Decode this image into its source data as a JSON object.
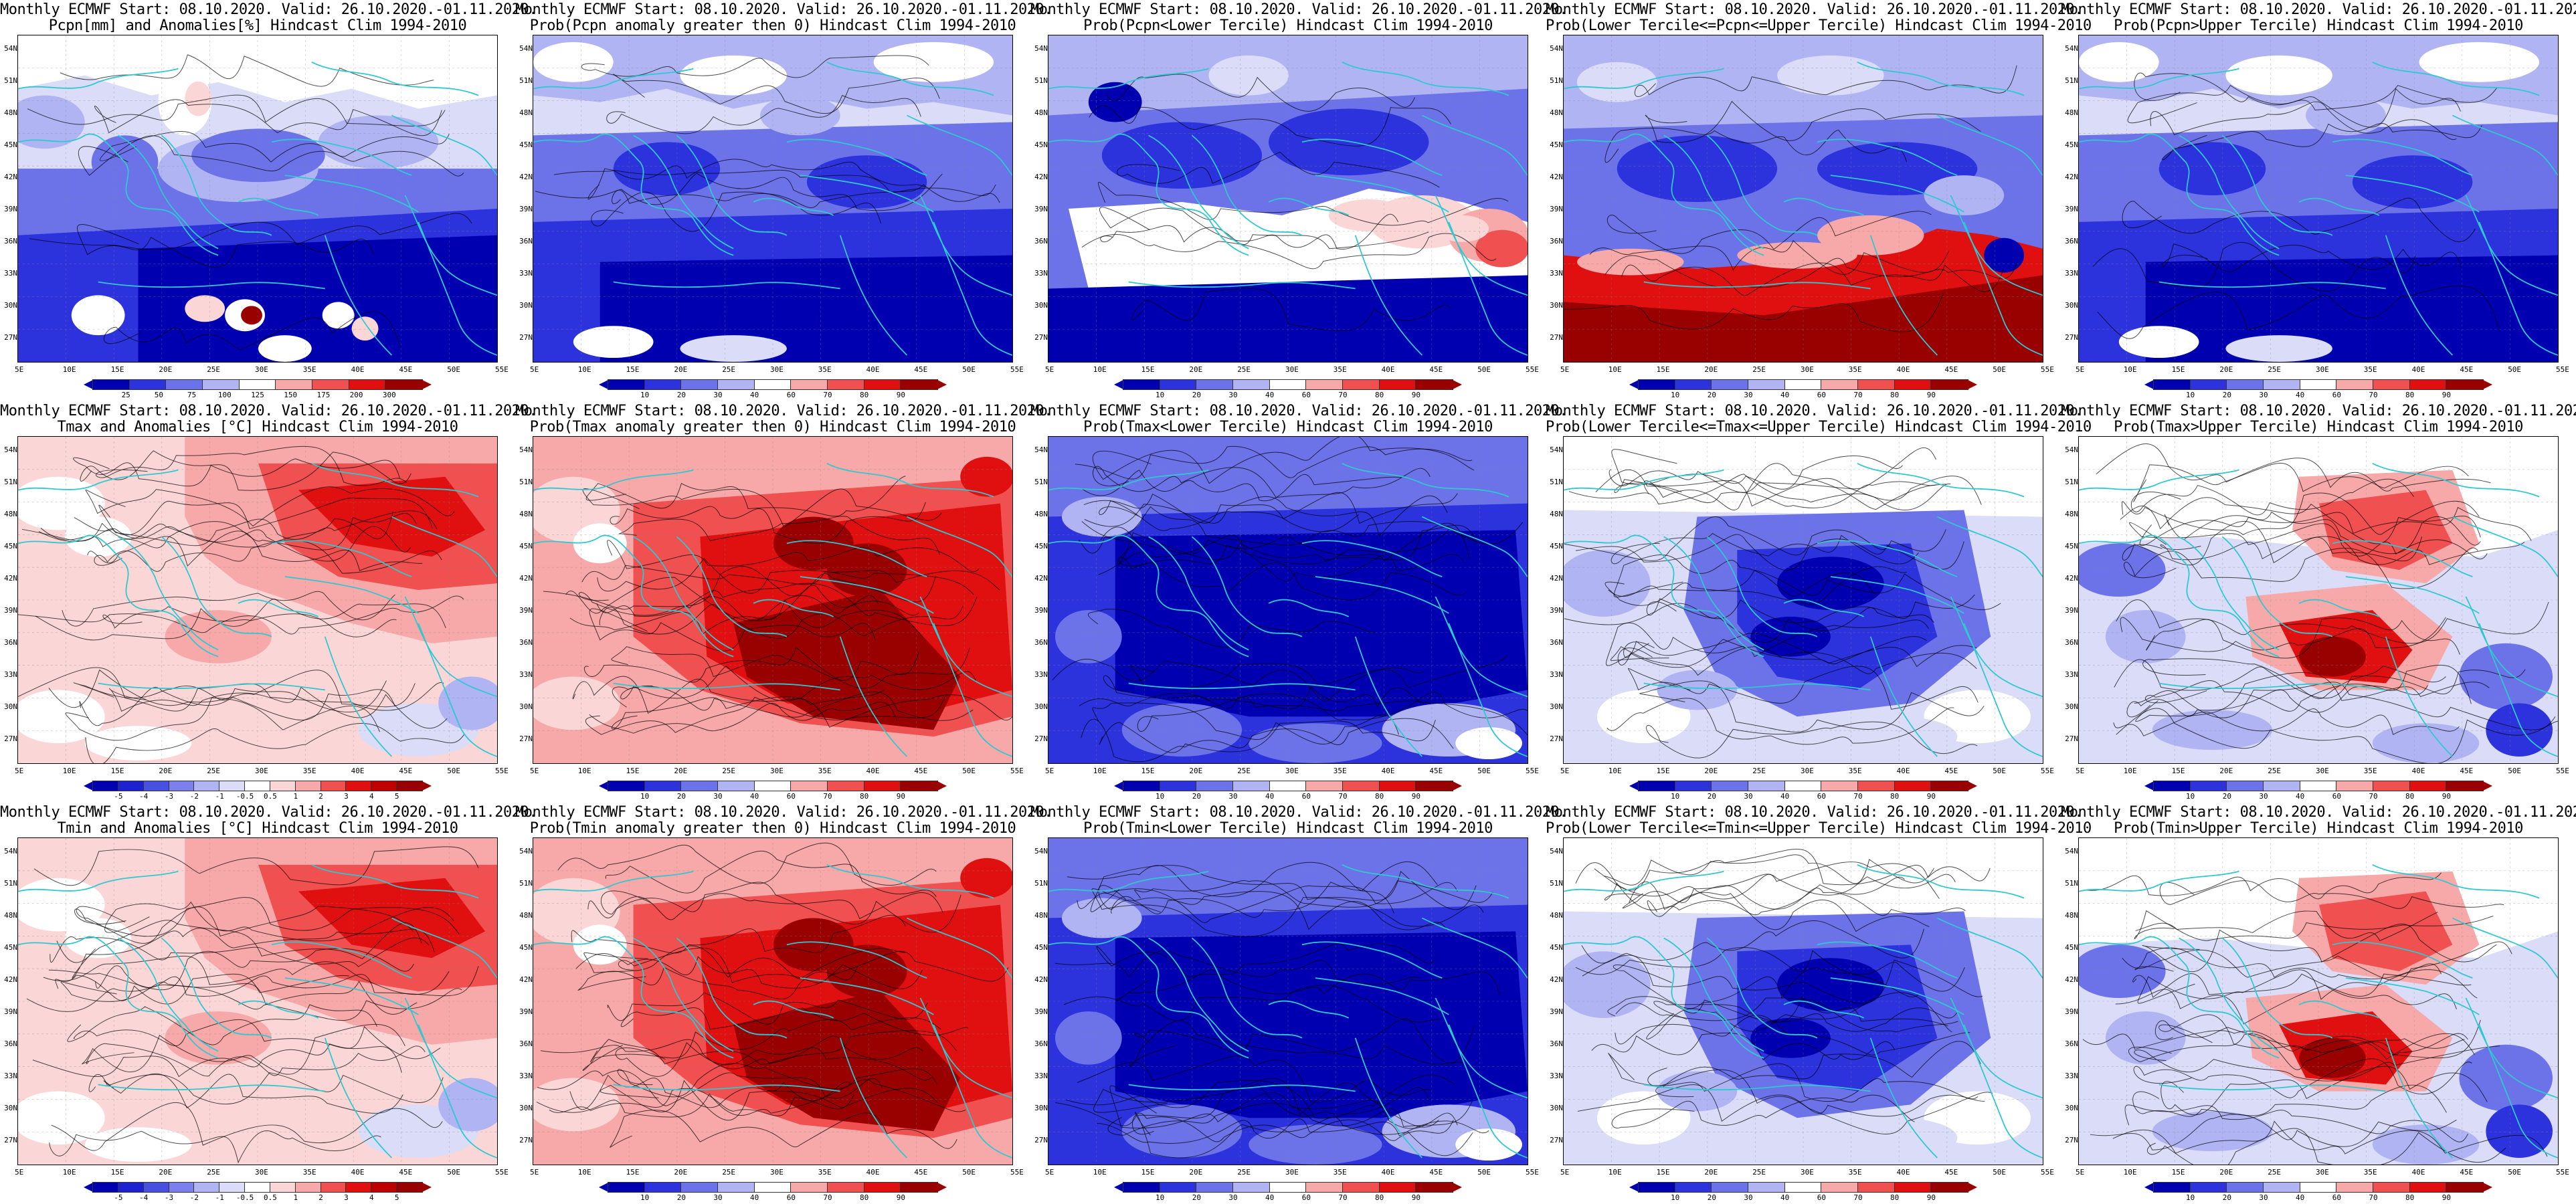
{
  "common_title": "Monthly ECMWF Start: 08.10.2020. Valid: 26.10.2020.-01.11.2020.",
  "lat_labels": [
    "54N",
    "51N",
    "48N",
    "45N",
    "42N",
    "39N",
    "36N",
    "33N",
    "30N",
    "27N"
  ],
  "lon_labels": [
    "5E",
    "10E",
    "15E",
    "20E",
    "25E",
    "30E",
    "35E",
    "40E",
    "45E",
    "50E",
    "55E"
  ],
  "colors": {
    "dark_red": "#990000",
    "red": "#e01010",
    "mid_red": "#f05050",
    "light_red": "#f7a8a8",
    "pale_red": "#fbd6d6",
    "white": "#ffffff",
    "pale_blue": "#dadcf8",
    "light_blue": "#b0b4f2",
    "mid_blue": "#6c72e8",
    "blue": "#2c32dc",
    "dark_blue": "#0000b0",
    "coast": "#30c8d0",
    "contour": "#000000"
  },
  "panels": [
    {
      "subtitle": "Pcpn[mm] and Anomalies[%] Hindcast Clim 1994-2010",
      "scheme": "precip",
      "ticks": [
        "25",
        "50",
        "75",
        "100",
        "125",
        "150",
        "175",
        "200",
        "300"
      ]
    },
    {
      "subtitle": "Prob(Pcpn anomaly greater then 0) Hindcast Clim 1994-2010",
      "scheme": "wet_blue",
      "ticks": [
        "10",
        "20",
        "30",
        "40",
        "60",
        "70",
        "80",
        "90"
      ]
    },
    {
      "subtitle": "Prob(Pcpn<Lower Tercile) Hindcast Clim 1994-2010",
      "scheme": "lower_precip",
      "ticks": [
        "10",
        "20",
        "30",
        "40",
        "60",
        "70",
        "80",
        "90"
      ]
    },
    {
      "subtitle": "Prob(Lower Tercile<=Pcpn<=Upper Tercile) Hindcast Clim 1994-2010",
      "scheme": "middle_precip",
      "ticks": [
        "10",
        "20",
        "30",
        "40",
        "60",
        "70",
        "80",
        "90"
      ]
    },
    {
      "subtitle": "Prob(Pcpn>Upper Tercile) Hindcast Clim 1994-2010",
      "scheme": "wet_blue",
      "ticks": [
        "10",
        "20",
        "30",
        "40",
        "60",
        "70",
        "80",
        "90"
      ]
    },
    {
      "subtitle": "Tmax and Anomalies [°C] Hindcast Clim 1994-2010",
      "scheme": "warm_light",
      "ticks": [
        "-5",
        "-4",
        "-3",
        "-2",
        "-1",
        "-0.5",
        "0.5",
        "1",
        "2",
        "3",
        "4",
        "5"
      ]
    },
    {
      "subtitle": "Prob(Tmax anomaly greater then 0) Hindcast Clim 1994-2010",
      "scheme": "warm_strong",
      "ticks": [
        "10",
        "20",
        "30",
        "40",
        "60",
        "70",
        "80",
        "90"
      ]
    },
    {
      "subtitle": "Prob(Tmax<Lower Tercile) Hindcast Clim 1994-2010",
      "scheme": "cold_all",
      "ticks": [
        "10",
        "20",
        "30",
        "40",
        "60",
        "70",
        "80",
        "90"
      ]
    },
    {
      "subtitle": "Prob(Lower Tercile<=Tmax<=Upper Tercile) Hindcast Clim 1994-2010",
      "scheme": "middle_temp",
      "ticks": [
        "10",
        "20",
        "30",
        "40",
        "60",
        "70",
        "80",
        "90"
      ]
    },
    {
      "subtitle": "Prob(Tmax>Upper Tercile) Hindcast Clim 1994-2010",
      "scheme": "upper_temp",
      "ticks": [
        "10",
        "20",
        "30",
        "40",
        "60",
        "70",
        "80",
        "90"
      ]
    },
    {
      "subtitle": "Tmin and Anomalies [°C] Hindcast Clim 1994-2010",
      "scheme": "warm_light",
      "ticks": [
        "-5",
        "-4",
        "-3",
        "-2",
        "-1",
        "-0.5",
        "0.5",
        "1",
        "2",
        "3",
        "4",
        "5"
      ]
    },
    {
      "subtitle": "Prob(Tmin anomaly greater then 0) Hindcast Clim 1994-2010",
      "scheme": "warm_strong",
      "ticks": [
        "10",
        "20",
        "30",
        "40",
        "60",
        "70",
        "80",
        "90"
      ]
    },
    {
      "subtitle": "Prob(Tmin<Lower Tercile) Hindcast Clim 1994-2010",
      "scheme": "cold_all",
      "ticks": [
        "10",
        "20",
        "30",
        "40",
        "60",
        "70",
        "80",
        "90"
      ]
    },
    {
      "subtitle": "Prob(Lower Tercile<=Tmin<=Upper Tercile) Hindcast Clim 1994-2010",
      "scheme": "middle_temp",
      "ticks": [
        "10",
        "20",
        "30",
        "40",
        "60",
        "70",
        "80",
        "90"
      ]
    },
    {
      "subtitle": "Prob(Tmin>Upper Tercile) Hindcast Clim 1994-2010",
      "scheme": "upper_temp",
      "ticks": [
        "10",
        "20",
        "30",
        "40",
        "60",
        "70",
        "80",
        "90"
      ]
    }
  ]
}
